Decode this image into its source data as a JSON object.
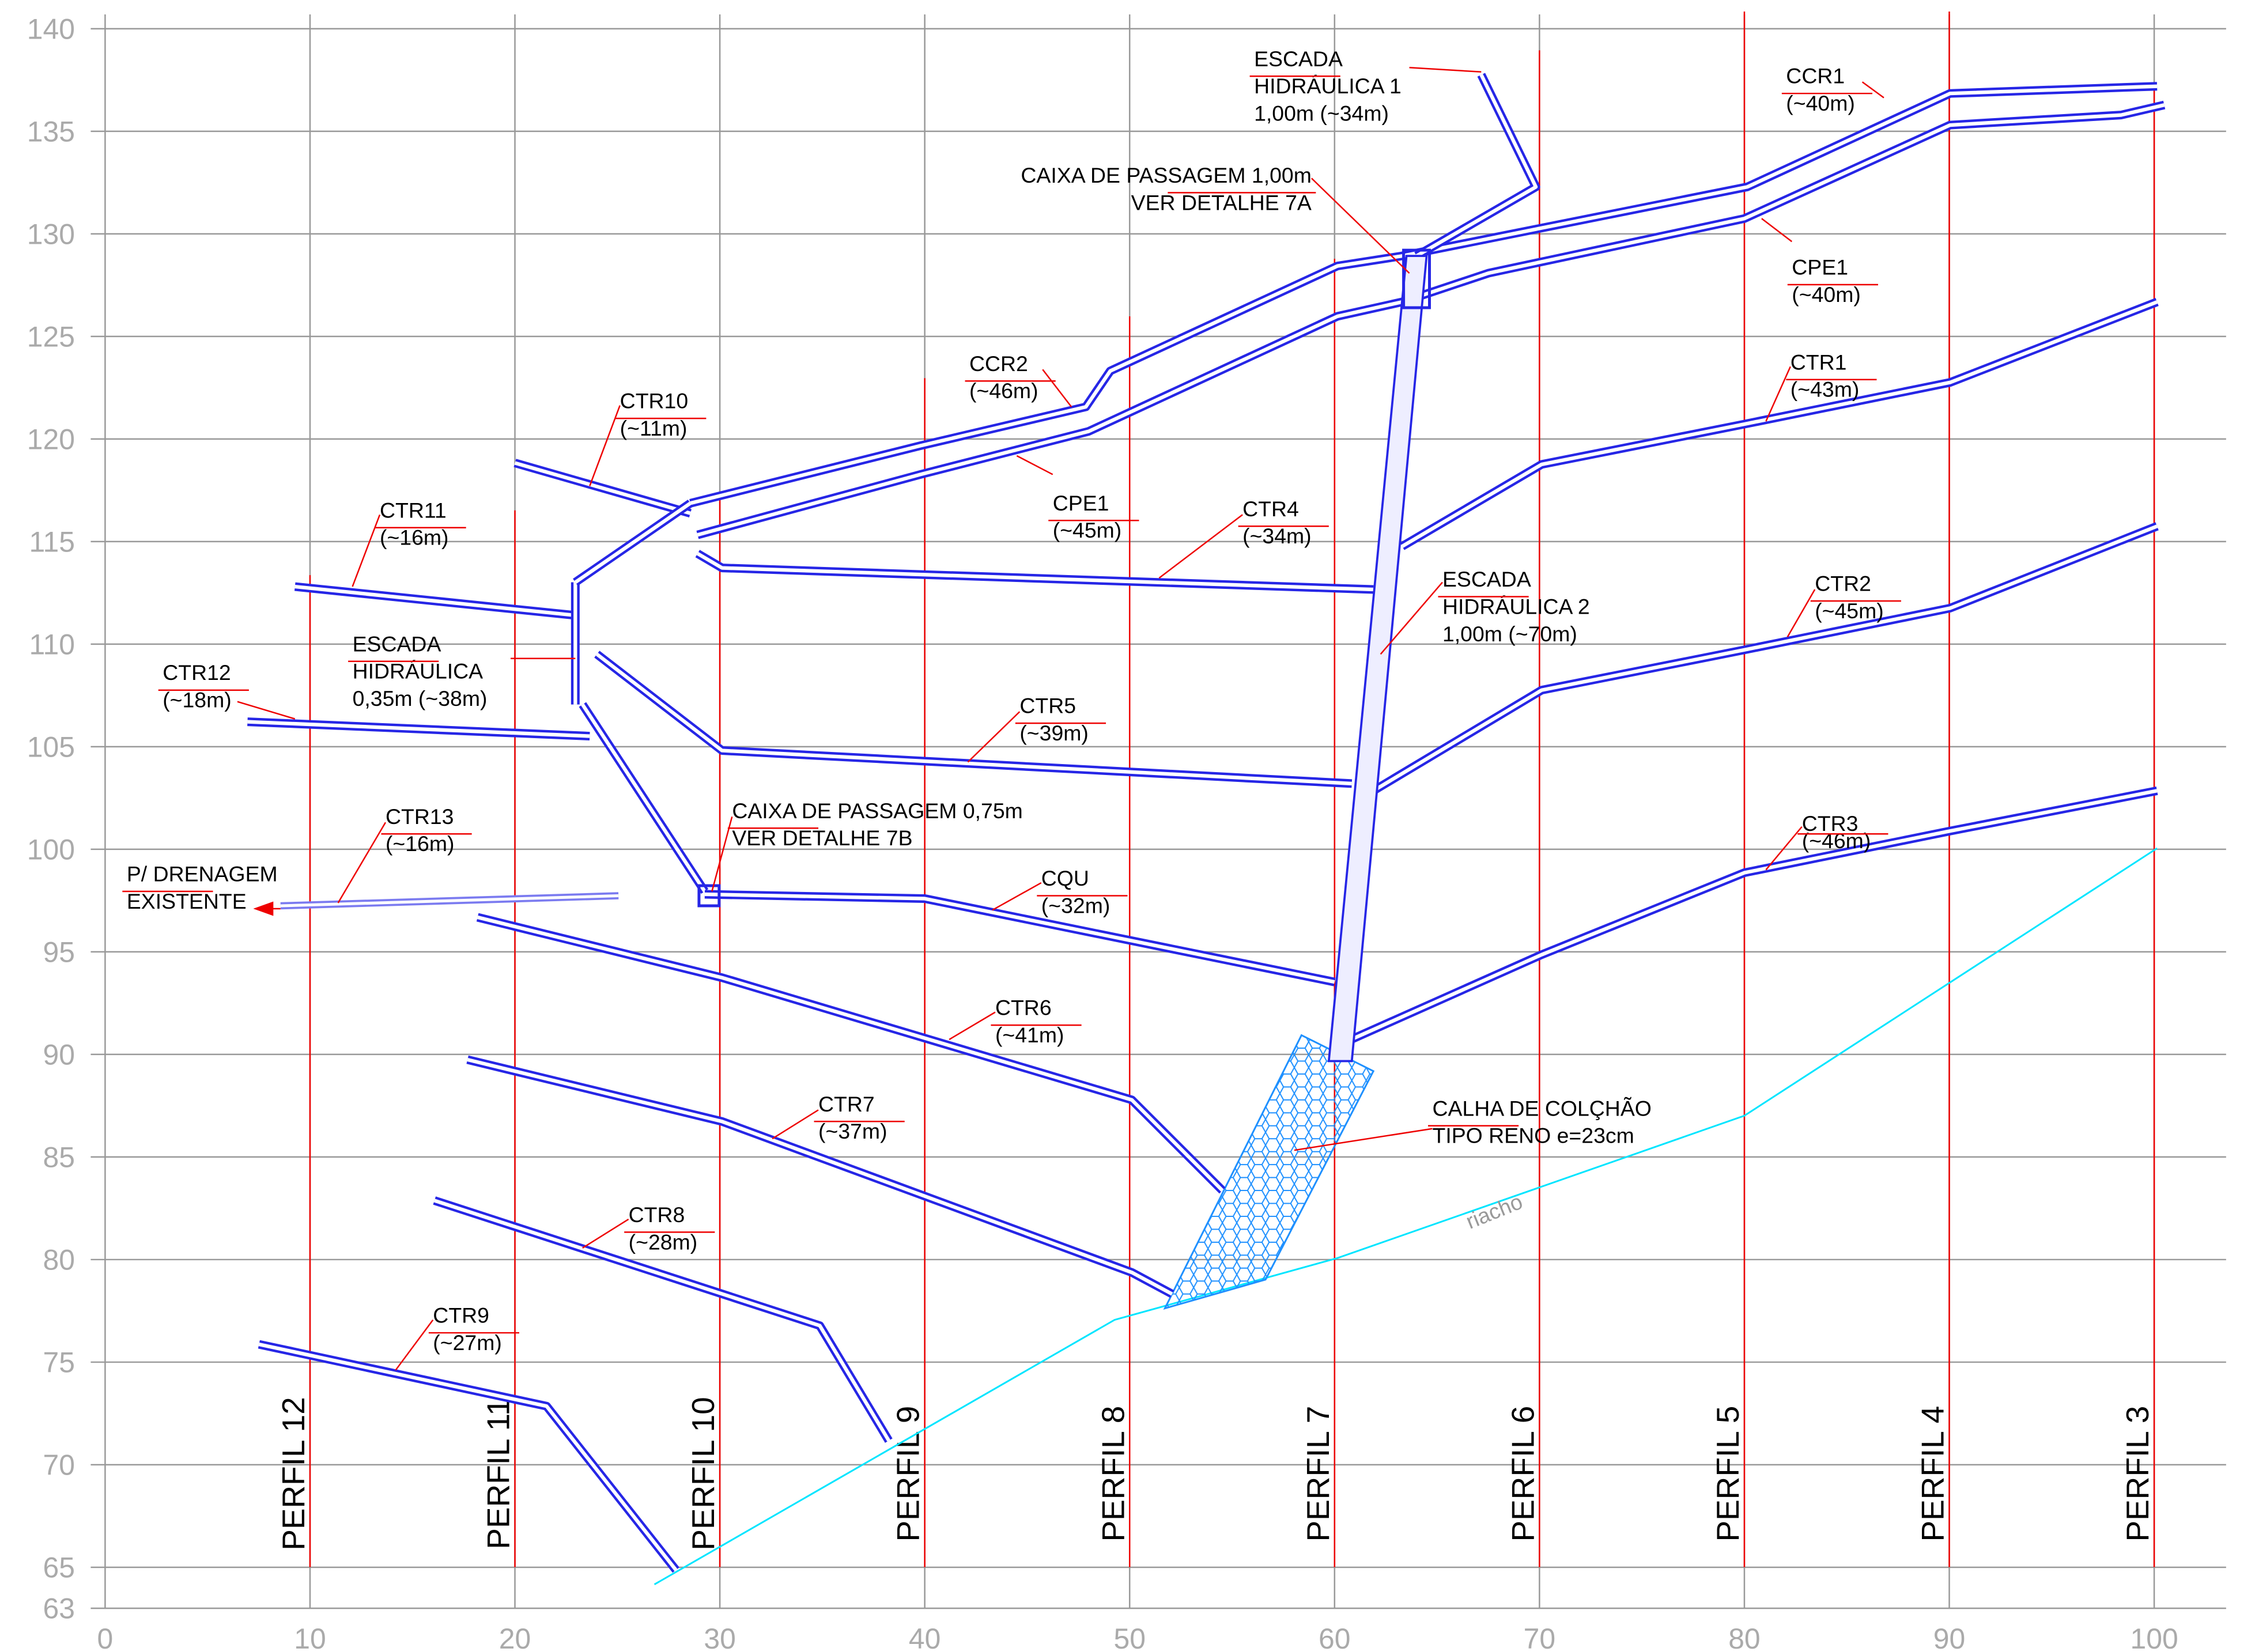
{
  "axes": {
    "xlim": [
      0,
      100
    ],
    "ylim": [
      63,
      140
    ],
    "xticks": [
      0,
      10,
      20,
      30,
      40,
      50,
      60,
      70,
      80,
      90,
      100
    ],
    "yticks": [
      63,
      65,
      70,
      75,
      80,
      85,
      90,
      95,
      100,
      105,
      110,
      115,
      120,
      125,
      130,
      135,
      140
    ]
  },
  "profiles": [
    {
      "label": "PERFIL 12",
      "x": 10
    },
    {
      "label": "PERFIL 11",
      "x": 20
    },
    {
      "label": "PERFIL 10",
      "x": 30
    },
    {
      "label": "PERFIL 9",
      "x": 40
    },
    {
      "label": "PERFIL 8",
      "x": 50
    },
    {
      "label": "PERFIL 7",
      "x": 60
    },
    {
      "label": "PERFIL 6",
      "x": 70
    },
    {
      "label": "PERFIL 5",
      "x": 80
    },
    {
      "label": "PERFIL 4",
      "x": 90
    },
    {
      "label": "PERFIL 3",
      "x": 100
    }
  ],
  "labels": [
    [
      "ESCADA",
      "HIDRÁULICA 1",
      "1,00m (~34m)"
    ],
    [
      "CAIXA DE PASSAGEM 1,00m",
      "VER DETALHE 7A"
    ],
    [
      "CCR1",
      "(~40m)"
    ],
    [
      "CPE1",
      "(~40m)"
    ],
    [
      "CCR2",
      "(~46m)"
    ],
    [
      "CTR1",
      "(~43m)"
    ],
    [
      "CTR10",
      "(~11m)"
    ],
    [
      "CPE1",
      "(~45m)"
    ],
    [
      "CTR4",
      "(~34m)"
    ],
    [
      "CTR11",
      "(~16m)"
    ],
    [
      "ESCADA",
      "HIDRÁULICA 2",
      "1,00m (~70m)"
    ],
    [
      "CTR2",
      "(~45m)"
    ],
    [
      "ESCADA",
      "HIDRÁULICA",
      "0,35m (~38m)"
    ],
    [
      "CTR12",
      "(~18m)"
    ],
    [
      "CTR5",
      "(~39m)"
    ],
    [
      "CAIXA DE PASSAGEM 0,75m",
      "VER DETALHE 7B"
    ],
    [
      "CTR13",
      "(~16m)"
    ],
    [
      "CTR3",
      "(~46m)"
    ],
    [
      "P/ DRENAGEM",
      "EXISTENTE"
    ],
    [
      "CQU",
      "(~32m)"
    ],
    [
      "CTR6",
      "(~41m)"
    ],
    [
      "CALHA DE COLÇHÃO",
      "TIPO RENO e=23cm"
    ],
    [
      "CTR7",
      "(~37m)"
    ],
    [
      "CTR8",
      "(~28m)"
    ],
    [
      "CTR9",
      "(~27m)"
    ],
    [
      "riacho"
    ]
  ]
}
